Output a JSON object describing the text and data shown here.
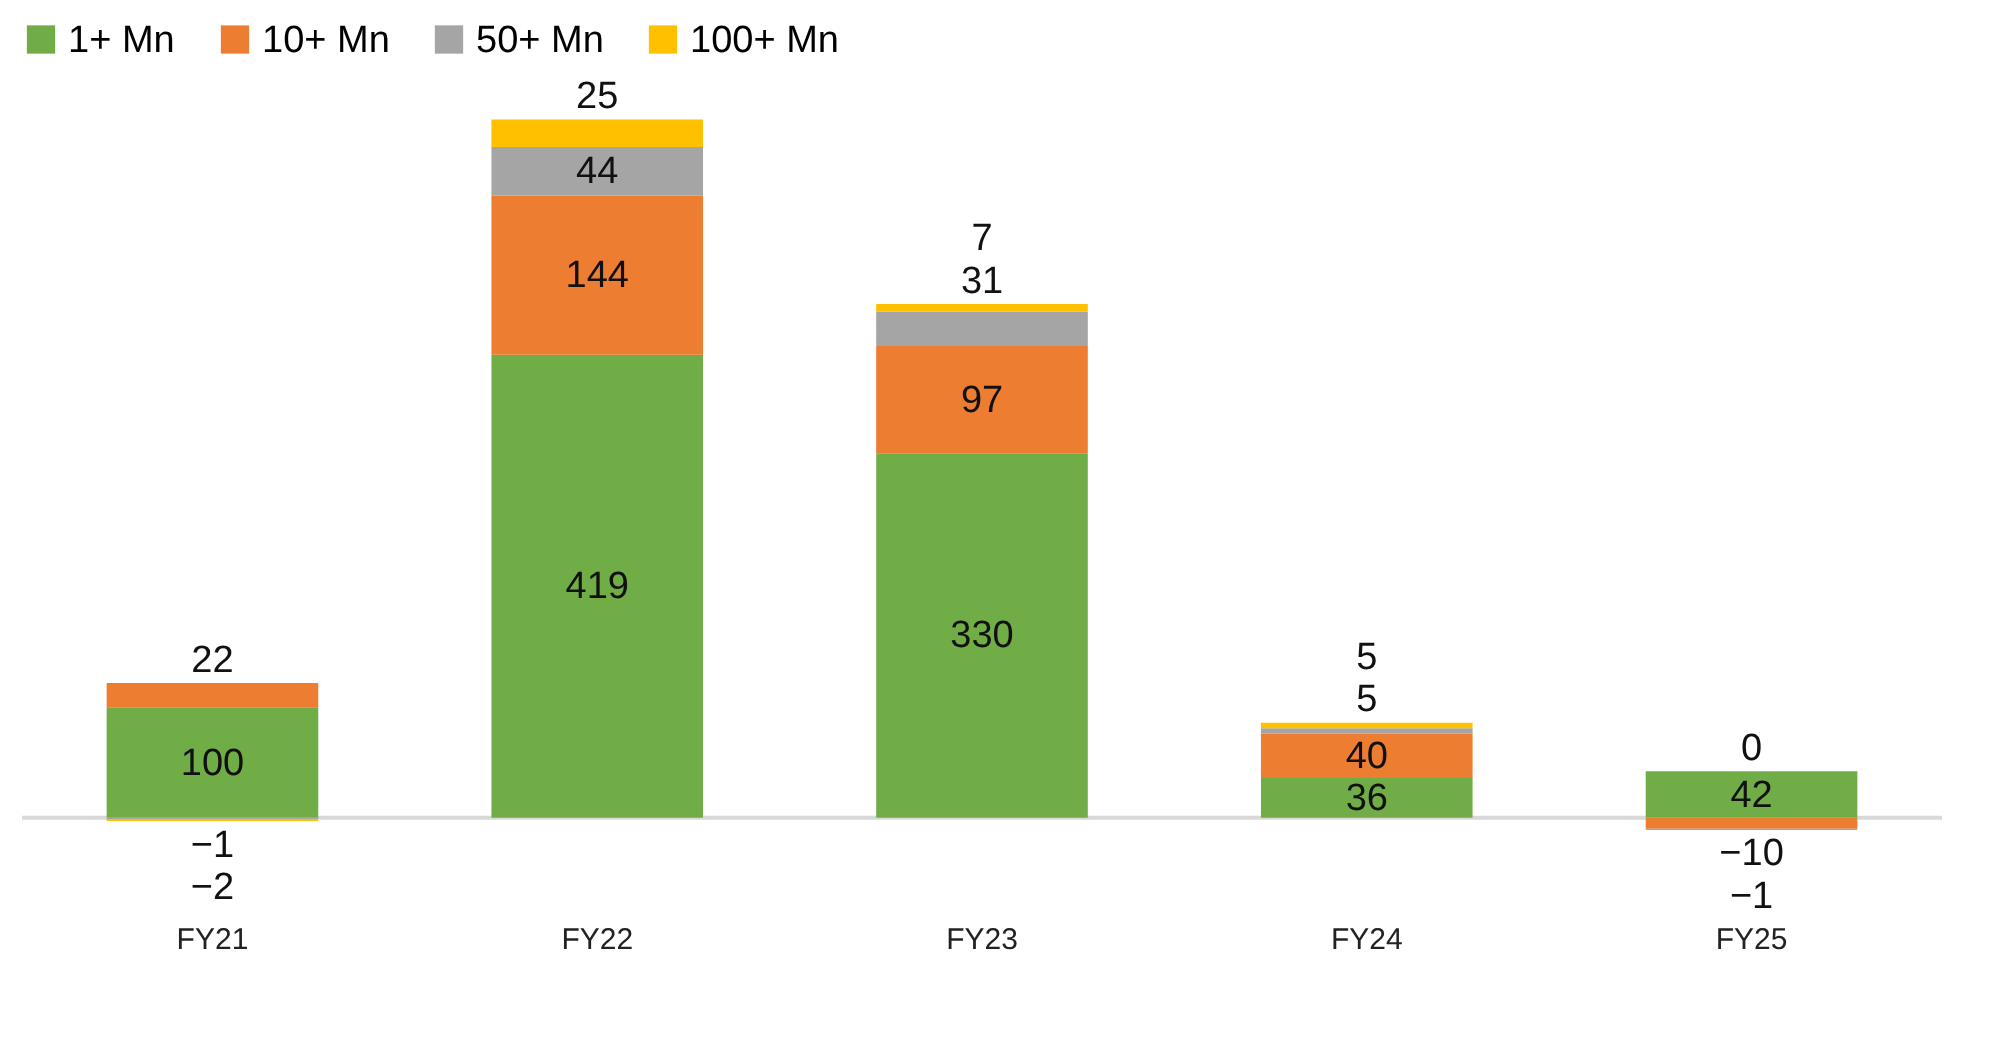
{
  "chart_data": {
    "type": "bar",
    "stacked": true,
    "data_labels": true,
    "legend": "top",
    "grid": false,
    "categories": [
      "FY21",
      "FY22",
      "FY23",
      "FY24",
      "FY25"
    ],
    "series": [
      {
        "name": "1+ Mn",
        "color": "#70ad47",
        "values": [
          100,
          419,
          330,
          36,
          42
        ]
      },
      {
        "name": "10+ Mn",
        "color": "#ed7d31",
        "values": [
          22,
          144,
          97,
          40,
          -10
        ]
      },
      {
        "name": "50+ Mn",
        "color": "#a5a5a5",
        "values": [
          -1,
          44,
          31,
          5,
          -1
        ]
      },
      {
        "name": "100+ Mn",
        "color": "#ffc000",
        "values": [
          -2,
          25,
          7,
          5,
          0
        ]
      }
    ]
  }
}
